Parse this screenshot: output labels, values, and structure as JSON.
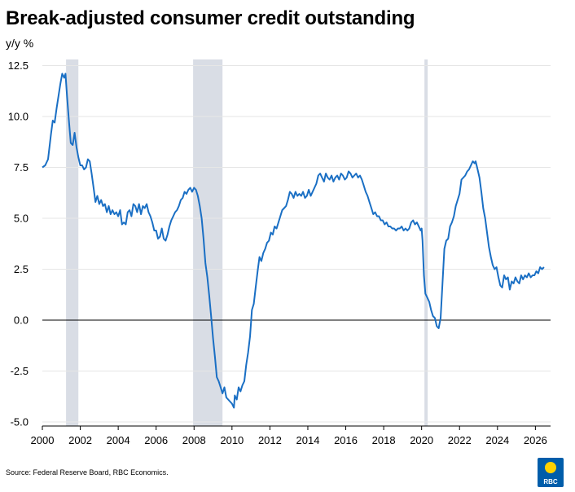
{
  "title": "Break-adjusted consumer credit outstanding",
  "source": "Source: Federal Reserve Board, RBC Economics.",
  "logo_text": "RBC",
  "colors": {
    "line": "#1a6fc4",
    "recession": "#d9dde5",
    "grid": "#e6e6e6",
    "logo": "#005daa",
    "logo_accent": "#ffd200"
  },
  "chart_data": {
    "type": "line",
    "ylabel": "y/y %",
    "xlabel": "",
    "xlim": [
      2000,
      2026.8
    ],
    "ylim": [
      -5.2,
      12.8
    ],
    "x_ticks": [
      "2000",
      "2002",
      "2004",
      "2006",
      "2008",
      "2010",
      "2012",
      "2014",
      "2016",
      "2018",
      "2020",
      "2022",
      "2024",
      "2026"
    ],
    "y_ticks": [
      "12.5",
      "10.0",
      "7.5",
      "5.0",
      "2.5",
      "0.0",
      "-2.5",
      "-5.0"
    ],
    "y_tick_values": [
      12.5,
      10.0,
      7.5,
      5.0,
      2.5,
      0.0,
      -2.5,
      -5.0
    ],
    "grid": "horizontal",
    "recessions": [
      [
        2001.25,
        2001.9
      ],
      [
        2007.95,
        2009.5
      ],
      [
        2020.15,
        2020.32
      ]
    ],
    "series": [
      {
        "points": [
          [
            2000.0,
            7.5
          ],
          [
            2000.15,
            7.6
          ],
          [
            2000.3,
            7.9
          ],
          [
            2000.45,
            9.1
          ],
          [
            2000.55,
            9.8
          ],
          [
            2000.65,
            9.7
          ],
          [
            2000.75,
            10.4
          ],
          [
            2000.85,
            11.0
          ],
          [
            2000.95,
            11.6
          ],
          [
            2001.05,
            12.1
          ],
          [
            2001.15,
            11.9
          ],
          [
            2001.22,
            12.1
          ],
          [
            2001.3,
            11.0
          ],
          [
            2001.4,
            9.8
          ],
          [
            2001.5,
            8.7
          ],
          [
            2001.6,
            8.6
          ],
          [
            2001.7,
            9.2
          ],
          [
            2001.8,
            8.5
          ],
          [
            2001.9,
            8.0
          ],
          [
            2002.0,
            7.6
          ],
          [
            2002.1,
            7.6
          ],
          [
            2002.2,
            7.4
          ],
          [
            2002.3,
            7.5
          ],
          [
            2002.4,
            7.9
          ],
          [
            2002.5,
            7.8
          ],
          [
            2002.6,
            7.2
          ],
          [
            2002.7,
            6.5
          ],
          [
            2002.8,
            5.8
          ],
          [
            2002.9,
            6.1
          ],
          [
            2003.0,
            5.7
          ],
          [
            2003.1,
            5.9
          ],
          [
            2003.2,
            5.6
          ],
          [
            2003.3,
            5.7
          ],
          [
            2003.4,
            5.3
          ],
          [
            2003.5,
            5.6
          ],
          [
            2003.6,
            5.2
          ],
          [
            2003.7,
            5.4
          ],
          [
            2003.8,
            5.2
          ],
          [
            2003.9,
            5.3
          ],
          [
            2004.0,
            5.1
          ],
          [
            2004.1,
            5.4
          ],
          [
            2004.2,
            4.7
          ],
          [
            2004.3,
            4.8
          ],
          [
            2004.4,
            4.7
          ],
          [
            2004.5,
            5.3
          ],
          [
            2004.6,
            5.4
          ],
          [
            2004.7,
            5.1
          ],
          [
            2004.8,
            5.7
          ],
          [
            2004.9,
            5.6
          ],
          [
            2005.0,
            5.3
          ],
          [
            2005.1,
            5.7
          ],
          [
            2005.2,
            5.2
          ],
          [
            2005.3,
            5.6
          ],
          [
            2005.4,
            5.5
          ],
          [
            2005.5,
            5.7
          ],
          [
            2005.6,
            5.3
          ],
          [
            2005.7,
            5.1
          ],
          [
            2005.8,
            4.8
          ],
          [
            2005.9,
            4.4
          ],
          [
            2006.0,
            4.4
          ],
          [
            2006.1,
            4.0
          ],
          [
            2006.2,
            4.1
          ],
          [
            2006.3,
            4.5
          ],
          [
            2006.4,
            4.0
          ],
          [
            2006.5,
            3.9
          ],
          [
            2006.6,
            4.2
          ],
          [
            2006.7,
            4.6
          ],
          [
            2006.8,
            4.9
          ],
          [
            2006.9,
            5.1
          ],
          [
            2007.0,
            5.3
          ],
          [
            2007.1,
            5.4
          ],
          [
            2007.2,
            5.6
          ],
          [
            2007.3,
            5.9
          ],
          [
            2007.4,
            6.0
          ],
          [
            2007.5,
            6.3
          ],
          [
            2007.6,
            6.2
          ],
          [
            2007.7,
            6.4
          ],
          [
            2007.8,
            6.5
          ],
          [
            2007.9,
            6.3
          ],
          [
            2008.0,
            6.5
          ],
          [
            2008.1,
            6.4
          ],
          [
            2008.2,
            6.1
          ],
          [
            2008.3,
            5.6
          ],
          [
            2008.4,
            5.0
          ],
          [
            2008.5,
            4.0
          ],
          [
            2008.6,
            2.8
          ],
          [
            2008.7,
            2.1
          ],
          [
            2008.8,
            1.2
          ],
          [
            2008.9,
            0.2
          ],
          [
            2009.0,
            -0.9
          ],
          [
            2009.1,
            -1.8
          ],
          [
            2009.2,
            -2.8
          ],
          [
            2009.3,
            -3.0
          ],
          [
            2009.4,
            -3.3
          ],
          [
            2009.5,
            -3.6
          ],
          [
            2009.6,
            -3.3
          ],
          [
            2009.7,
            -3.8
          ],
          [
            2009.8,
            -3.9
          ],
          [
            2009.9,
            -4.0
          ],
          [
            2010.0,
            -4.1
          ],
          [
            2010.1,
            -4.3
          ],
          [
            2010.15,
            -3.7
          ],
          [
            2010.25,
            -3.9
          ],
          [
            2010.35,
            -3.3
          ],
          [
            2010.45,
            -3.5
          ],
          [
            2010.55,
            -3.2
          ],
          [
            2010.65,
            -3.0
          ],
          [
            2010.75,
            -2.2
          ],
          [
            2010.85,
            -1.6
          ],
          [
            2010.95,
            -0.8
          ],
          [
            2011.05,
            0.5
          ],
          [
            2011.15,
            0.8
          ],
          [
            2011.25,
            1.6
          ],
          [
            2011.35,
            2.4
          ],
          [
            2011.45,
            3.1
          ],
          [
            2011.55,
            2.9
          ],
          [
            2011.65,
            3.3
          ],
          [
            2011.75,
            3.5
          ],
          [
            2011.85,
            3.8
          ],
          [
            2011.95,
            3.9
          ],
          [
            2012.05,
            4.3
          ],
          [
            2012.15,
            4.2
          ],
          [
            2012.25,
            4.6
          ],
          [
            2012.35,
            4.5
          ],
          [
            2012.45,
            4.8
          ],
          [
            2012.55,
            5.1
          ],
          [
            2012.65,
            5.4
          ],
          [
            2012.75,
            5.5
          ],
          [
            2012.85,
            5.6
          ],
          [
            2012.95,
            5.9
          ],
          [
            2013.05,
            6.3
          ],
          [
            2013.15,
            6.2
          ],
          [
            2013.25,
            6.0
          ],
          [
            2013.35,
            6.3
          ],
          [
            2013.45,
            6.1
          ],
          [
            2013.55,
            6.2
          ],
          [
            2013.65,
            6.1
          ],
          [
            2013.75,
            6.3
          ],
          [
            2013.85,
            6.0
          ],
          [
            2013.95,
            6.1
          ],
          [
            2014.05,
            6.4
          ],
          [
            2014.15,
            6.1
          ],
          [
            2014.25,
            6.3
          ],
          [
            2014.35,
            6.5
          ],
          [
            2014.45,
            6.7
          ],
          [
            2014.55,
            7.1
          ],
          [
            2014.65,
            7.2
          ],
          [
            2014.75,
            7.0
          ],
          [
            2014.85,
            6.8
          ],
          [
            2014.95,
            7.2
          ],
          [
            2015.05,
            7.0
          ],
          [
            2015.15,
            6.9
          ],
          [
            2015.25,
            7.1
          ],
          [
            2015.35,
            6.8
          ],
          [
            2015.45,
            7.0
          ],
          [
            2015.55,
            7.1
          ],
          [
            2015.65,
            6.9
          ],
          [
            2015.75,
            7.2
          ],
          [
            2015.85,
            7.1
          ],
          [
            2015.95,
            6.9
          ],
          [
            2016.05,
            7.0
          ],
          [
            2016.15,
            7.3
          ],
          [
            2016.25,
            7.2
          ],
          [
            2016.35,
            7.0
          ],
          [
            2016.45,
            7.1
          ],
          [
            2016.55,
            7.2
          ],
          [
            2016.65,
            7.0
          ],
          [
            2016.75,
            7.1
          ],
          [
            2016.85,
            6.9
          ],
          [
            2016.95,
            6.6
          ],
          [
            2017.05,
            6.3
          ],
          [
            2017.15,
            6.1
          ],
          [
            2017.25,
            5.8
          ],
          [
            2017.35,
            5.5
          ],
          [
            2017.45,
            5.2
          ],
          [
            2017.55,
            5.3
          ],
          [
            2017.65,
            5.1
          ],
          [
            2017.75,
            5.1
          ],
          [
            2017.85,
            4.9
          ],
          [
            2017.95,
            4.9
          ],
          [
            2018.05,
            4.7
          ],
          [
            2018.15,
            4.8
          ],
          [
            2018.25,
            4.6
          ],
          [
            2018.35,
            4.6
          ],
          [
            2018.45,
            4.5
          ],
          [
            2018.55,
            4.5
          ],
          [
            2018.65,
            4.4
          ],
          [
            2018.75,
            4.5
          ],
          [
            2018.85,
            4.5
          ],
          [
            2018.95,
            4.6
          ],
          [
            2019.05,
            4.4
          ],
          [
            2019.15,
            4.5
          ],
          [
            2019.25,
            4.4
          ],
          [
            2019.35,
            4.5
          ],
          [
            2019.45,
            4.8
          ],
          [
            2019.55,
            4.9
          ],
          [
            2019.65,
            4.7
          ],
          [
            2019.75,
            4.8
          ],
          [
            2019.85,
            4.6
          ],
          [
            2019.95,
            4.4
          ],
          [
            2020.0,
            4.5
          ],
          [
            2020.05,
            3.9
          ],
          [
            2020.12,
            2.2
          ],
          [
            2020.2,
            1.3
          ],
          [
            2020.3,
            1.1
          ],
          [
            2020.4,
            0.9
          ],
          [
            2020.5,
            0.5
          ],
          [
            2020.6,
            0.2
          ],
          [
            2020.7,
            0.1
          ],
          [
            2020.8,
            -0.3
          ],
          [
            2020.9,
            -0.4
          ],
          [
            2021.0,
            0.1
          ],
          [
            2021.1,
            1.8
          ],
          [
            2021.2,
            3.5
          ],
          [
            2021.3,
            3.9
          ],
          [
            2021.4,
            4.0
          ],
          [
            2021.5,
            4.6
          ],
          [
            2021.6,
            4.8
          ],
          [
            2021.7,
            5.1
          ],
          [
            2021.8,
            5.6
          ],
          [
            2021.9,
            5.9
          ],
          [
            2022.0,
            6.2
          ],
          [
            2022.1,
            6.9
          ],
          [
            2022.2,
            7.0
          ],
          [
            2022.3,
            7.1
          ],
          [
            2022.4,
            7.3
          ],
          [
            2022.5,
            7.4
          ],
          [
            2022.6,
            7.6
          ],
          [
            2022.7,
            7.8
          ],
          [
            2022.8,
            7.7
          ],
          [
            2022.85,
            7.8
          ],
          [
            2022.95,
            7.4
          ],
          [
            2023.05,
            7.0
          ],
          [
            2023.15,
            6.3
          ],
          [
            2023.25,
            5.5
          ],
          [
            2023.35,
            5.0
          ],
          [
            2023.45,
            4.3
          ],
          [
            2023.55,
            3.6
          ],
          [
            2023.65,
            3.1
          ],
          [
            2023.75,
            2.7
          ],
          [
            2023.85,
            2.5
          ],
          [
            2023.95,
            2.6
          ],
          [
            2024.05,
            2.1
          ],
          [
            2024.15,
            1.7
          ],
          [
            2024.25,
            1.6
          ],
          [
            2024.35,
            2.2
          ],
          [
            2024.45,
            2.0
          ],
          [
            2024.55,
            2.1
          ],
          [
            2024.65,
            1.5
          ],
          [
            2024.75,
            1.9
          ],
          [
            2024.85,
            1.8
          ],
          [
            2024.95,
            2.1
          ],
          [
            2025.05,
            1.9
          ],
          [
            2025.15,
            1.8
          ],
          [
            2025.25,
            2.2
          ],
          [
            2025.35,
            2.0
          ],
          [
            2025.45,
            2.2
          ],
          [
            2025.55,
            2.1
          ],
          [
            2025.65,
            2.3
          ],
          [
            2025.75,
            2.1
          ],
          [
            2025.85,
            2.2
          ],
          [
            2025.95,
            2.2
          ],
          [
            2026.05,
            2.4
          ],
          [
            2026.15,
            2.3
          ],
          [
            2026.25,
            2.6
          ],
          [
            2026.35,
            2.5
          ],
          [
            2026.45,
            2.6
          ]
        ]
      }
    ]
  }
}
